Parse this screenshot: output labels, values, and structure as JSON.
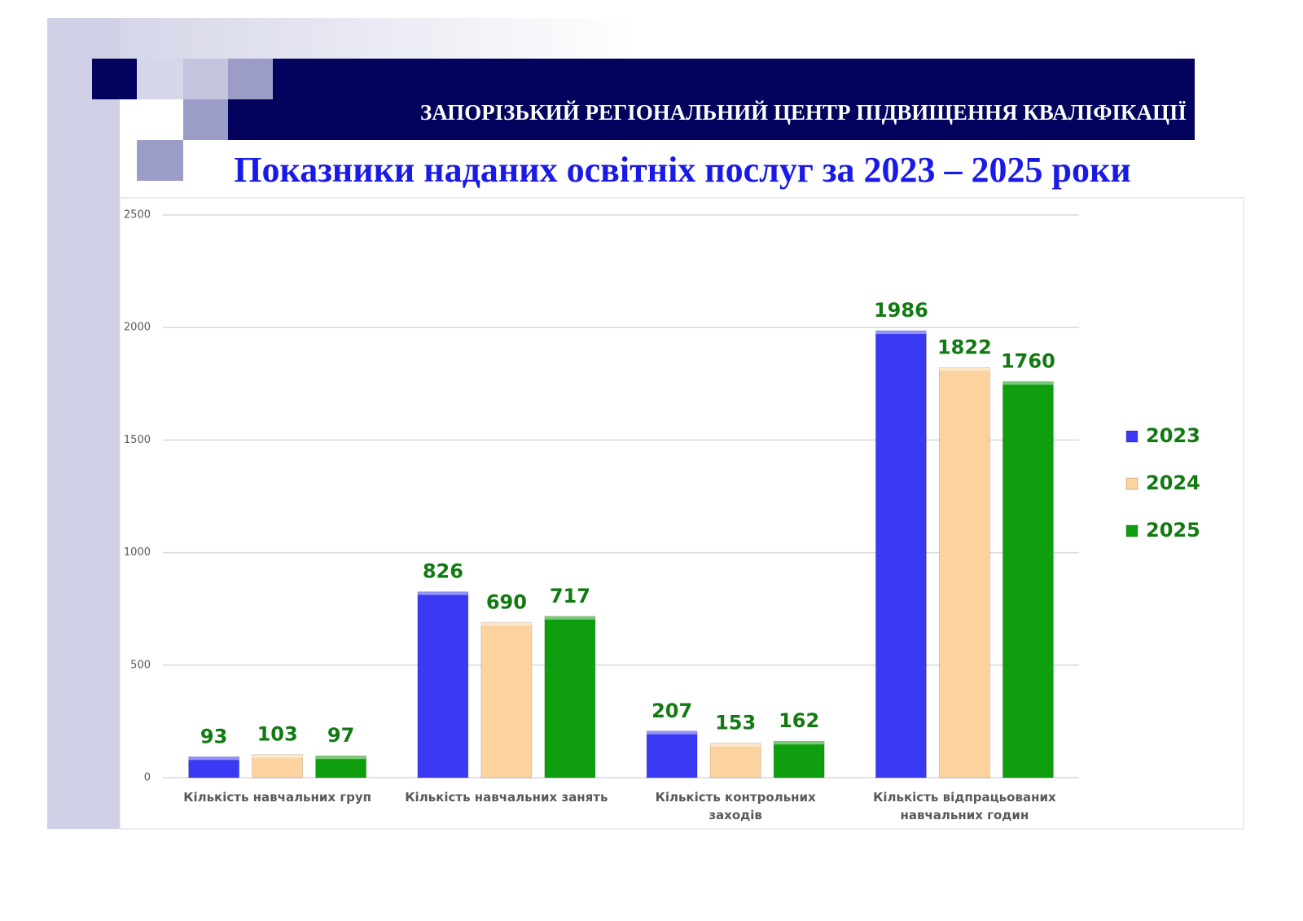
{
  "header": "ЗАПОРІЗЬКИЙ РЕГІОНАЛЬНИЙ ЦЕНТР ПІДВИЩЕННЯ КВАЛІФІКАЦІЇ",
  "title": "Показники наданих освітніх послуг за 2023 – 2025 роки",
  "chart_data": {
    "type": "bar",
    "categories": [
      "Кількість навчальних груп",
      "Кількість навчальних занять",
      "Кількість контрольних заходів",
      "Кількість відпрацьованих навчальних годин"
    ],
    "series": [
      {
        "name": "2023",
        "color": "#3a3af5",
        "values": [
          93,
          826,
          207,
          1986
        ]
      },
      {
        "name": "2024",
        "color": "#fcd39e",
        "values": [
          103,
          690,
          153,
          1822
        ]
      },
      {
        "name": "2025",
        "color": "#0e9e0e",
        "values": [
          97,
          717,
          162,
          1760
        ]
      }
    ],
    "ylim": [
      0,
      2500
    ],
    "yticks": [
      0,
      500,
      1000,
      1500,
      2000,
      2500
    ],
    "grid": true,
    "legend": "right"
  }
}
